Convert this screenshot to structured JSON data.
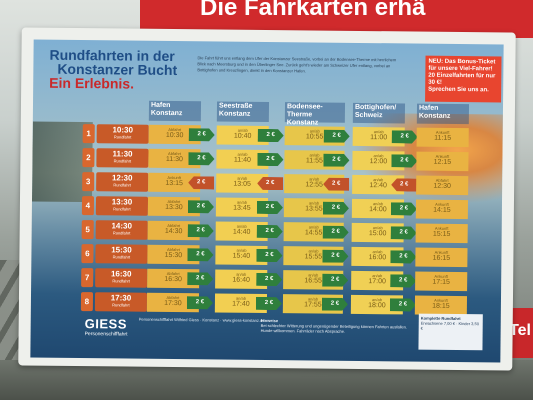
{
  "top_sign": {
    "text": "Die Fahrkarten erhä"
  },
  "right_sign": {
    "text": "Tel"
  },
  "poster": {
    "title_line1": "Rundfahrten in der",
    "title_line2": "Konstanzer Bucht",
    "subtitle": "Ein Erlebnis.",
    "intro": "Die Fahrt führt uns entlang dem Ufer der Konstanzer Seestraße, vorbei an der Bodensee-Therme mit herrlichem Blick nach Meersburg und in den Überlinger See. Zurück geht's wieder am Schweizer Ufer entlang, vorbei an Bottighofen und Kreuzlingen, direkt in den Konstanzer Hafen.",
    "bonus": {
      "line1": "NEU: Das Bonus-Ticket",
      "line2": "für unsere Viel-Fahrer!",
      "line3": "20 Einzelfahrten für nur 30 €!",
      "line4": "Sprechen Sie uns an."
    },
    "columns": [
      "Hafen Konstanz",
      "Seestraße Konstanz",
      "Bodensee-Therme Konstanz",
      "Bottighofen/ Schweiz",
      "Hafen Konstanz"
    ],
    "departure_label": "Rundfahrt",
    "rows": [
      {
        "num": "1",
        "dep": "10:30",
        "cells": [
          {
            "label": "Abfahrt",
            "time": "10:30",
            "price": "2 €",
            "dir": "g"
          },
          {
            "label": "an/ab",
            "time": "10:40",
            "price": "2 €",
            "dir": "g"
          },
          {
            "label": "an/ab",
            "time": "10:55",
            "price": "2 €",
            "dir": "g"
          },
          {
            "label": "an/ab",
            "time": "11:00",
            "price": "2 €",
            "dir": "g"
          },
          {
            "label": "Ankunft",
            "time": "11:15"
          }
        ]
      },
      {
        "num": "2",
        "dep": "11:30",
        "cells": [
          {
            "label": "Abfahrt",
            "time": "11:30",
            "price": "2 €",
            "dir": "g"
          },
          {
            "label": "an/ab",
            "time": "11:40",
            "price": "2 €",
            "dir": "g"
          },
          {
            "label": "an/ab",
            "time": "11:55",
            "price": "2 €",
            "dir": "g"
          },
          {
            "label": "an/ab",
            "time": "12:00",
            "price": "2 €",
            "dir": "g"
          },
          {
            "label": "Ankunft",
            "time": "12:15"
          }
        ]
      },
      {
        "num": "3",
        "dep": "12:30",
        "cells": [
          {
            "label": "Ankunft",
            "time": "13:15",
            "price": "2 €",
            "dir": "o"
          },
          {
            "label": "an/ab",
            "time": "13:05",
            "price": "2 €",
            "dir": "o"
          },
          {
            "label": "an/ab",
            "time": "12:55",
            "price": "2 €",
            "dir": "o"
          },
          {
            "label": "an/ab",
            "time": "12:40",
            "price": "2 €",
            "dir": "o"
          },
          {
            "label": "Abfahrt",
            "time": "12:30"
          }
        ]
      },
      {
        "num": "4",
        "dep": "13:30",
        "cells": [
          {
            "label": "Abfahrt",
            "time": "13:30",
            "price": "2 €",
            "dir": "g"
          },
          {
            "label": "an/ab",
            "time": "13:45",
            "price": "2 €",
            "dir": "g"
          },
          {
            "label": "an/ab",
            "time": "13:55",
            "price": "2 €",
            "dir": "g"
          },
          {
            "label": "an/ab",
            "time": "14:00",
            "price": "2 €",
            "dir": "g"
          },
          {
            "label": "Ankunft",
            "time": "14:15"
          }
        ]
      },
      {
        "num": "5",
        "dep": "14:30",
        "cells": [
          {
            "label": "Abfahrt",
            "time": "14:30",
            "price": "2 €",
            "dir": "g"
          },
          {
            "label": "an/ab",
            "time": "14:40",
            "price": "2 €",
            "dir": "g"
          },
          {
            "label": "an/ab",
            "time": "14:55",
            "price": "2 €",
            "dir": "g"
          },
          {
            "label": "an/ab",
            "time": "15:00",
            "price": "2 €",
            "dir": "g"
          },
          {
            "label": "Ankunft",
            "time": "15:15"
          }
        ]
      },
      {
        "num": "6",
        "dep": "15:30",
        "cells": [
          {
            "label": "Abfahrt",
            "time": "15:30",
            "price": "2 €",
            "dir": "g"
          },
          {
            "label": "an/ab",
            "time": "15:40",
            "price": "2 €",
            "dir": "g"
          },
          {
            "label": "an/ab",
            "time": "15:55",
            "price": "2 €",
            "dir": "g"
          },
          {
            "label": "an/ab",
            "time": "16:00",
            "price": "2 €",
            "dir": "g"
          },
          {
            "label": "Ankunft",
            "time": "16:15"
          }
        ]
      },
      {
        "num": "7",
        "dep": "16:30",
        "cells": [
          {
            "label": "Abfahrt",
            "time": "16:30",
            "price": "2 €",
            "dir": "g"
          },
          {
            "label": "an/ab",
            "time": "16:40",
            "price": "2 €",
            "dir": "g"
          },
          {
            "label": "an/ab",
            "time": "16:55",
            "price": "2 €",
            "dir": "g"
          },
          {
            "label": "an/ab",
            "time": "17:00",
            "price": "2 €",
            "dir": "g"
          },
          {
            "label": "Ankunft",
            "time": "17:15"
          }
        ]
      },
      {
        "num": "8",
        "dep": "17:30",
        "cells": [
          {
            "label": "Abfahrt",
            "time": "17:30",
            "price": "2 €",
            "dir": "g"
          },
          {
            "label": "an/ab",
            "time": "17:40",
            "price": "2 €",
            "dir": "g"
          },
          {
            "label": "an/ab",
            "time": "17:55",
            "price": "2 €",
            "dir": "g"
          },
          {
            "label": "an/ab",
            "time": "18:00",
            "price": "2 €",
            "dir": "g"
          },
          {
            "label": "Ankunft",
            "time": "18:15"
          }
        ]
      }
    ],
    "logo_main": "GIESS",
    "logo_sub": "Personenschifffahrt",
    "contact": "Personenschifffahrt Wilfried Giess · Konstanz · www.giess-konstanz.de",
    "hinweis_title": "Hinweise",
    "hinweis": "Bei schlechter Witterung und ungenügender Beteiligung können Fahrten ausfallen. Hunde willkommen. Fahrräder nach Absprache.",
    "fares_title": "Komplette Rundfahrt",
    "fares": "Erwachsene 7,00 € · Kinder 3,50 €"
  }
}
